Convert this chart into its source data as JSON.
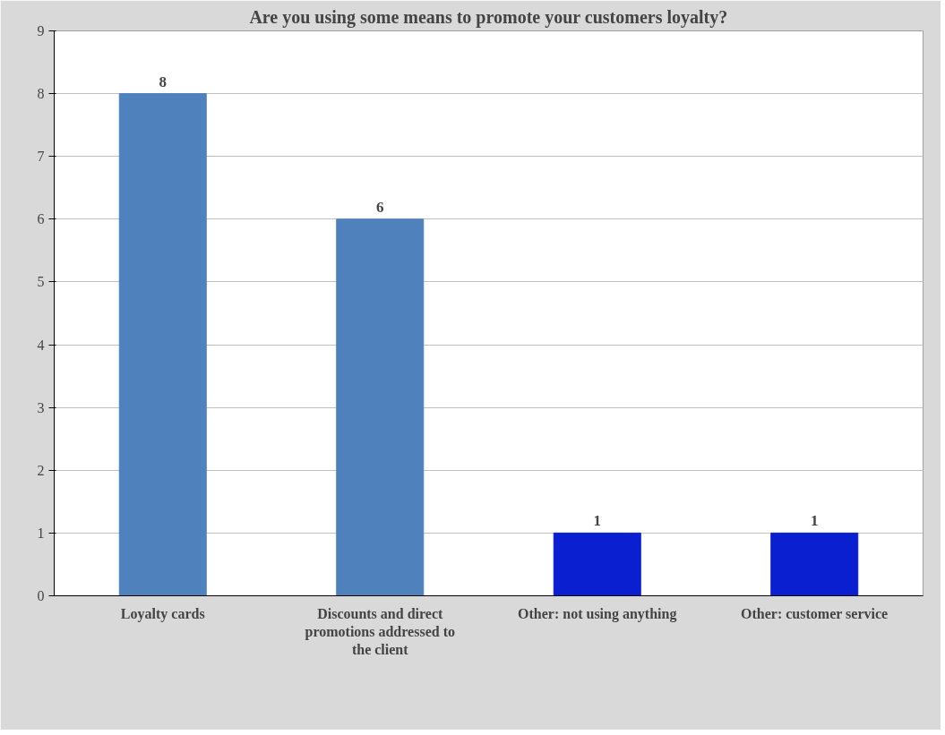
{
  "chart_data": {
    "type": "bar",
    "title": "Are you using some means to promote your customers loyalty?",
    "categories": [
      "Loyalty cards",
      "Discounts and direct promotions addressed to the client",
      "Other: not using anything",
      "Other: customer service"
    ],
    "values": [
      8,
      6,
      1,
      1
    ],
    "colors": [
      "#4f81bd",
      "#4f81bd",
      "#0a1fd0",
      "#0a1fd0"
    ],
    "ylim": [
      0,
      9
    ],
    "yticks": [
      0,
      1,
      2,
      3,
      4,
      5,
      6,
      7,
      8,
      9
    ],
    "grid": "y",
    "data_labels": true
  }
}
